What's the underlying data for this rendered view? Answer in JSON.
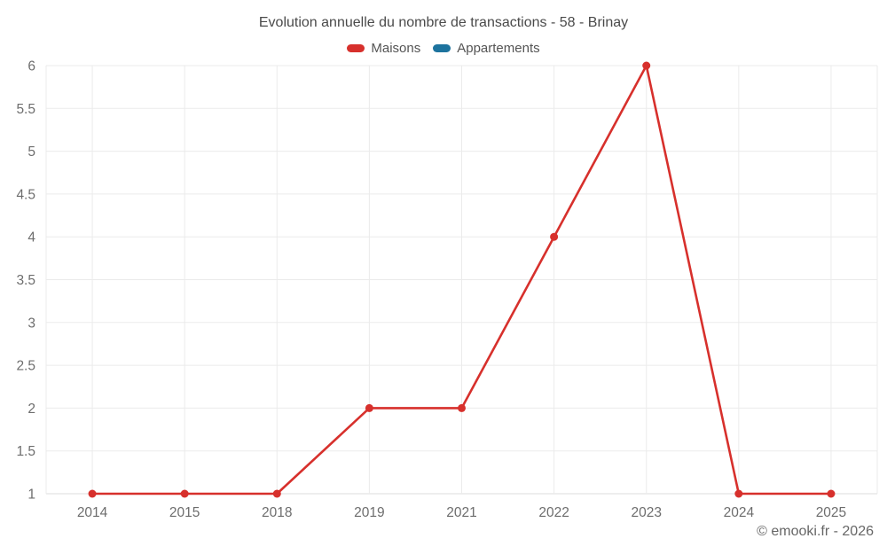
{
  "title": "Evolution annuelle du nombre de transactions - 58 - Brinay",
  "footer": "© emooki.fr - 2026",
  "legend": [
    {
      "label": "Maisons",
      "color": "#d7302c"
    },
    {
      "label": "Appartements",
      "color": "#1d739e"
    }
  ],
  "chart_data": {
    "type": "line",
    "title": "Evolution annuelle du nombre de transactions - 58 - Brinay",
    "categories": [
      "2014",
      "2015",
      "2018",
      "2019",
      "2021",
      "2022",
      "2023",
      "2024",
      "2025"
    ],
    "series": [
      {
        "name": "Maisons",
        "color": "#d7302c",
        "marker": "circle",
        "values": [
          1,
          1,
          1,
          2,
          2,
          4,
          6,
          1,
          1
        ]
      },
      {
        "name": "Appartements",
        "color": "#1d739e",
        "marker": "circle",
        "values": []
      }
    ],
    "xlabel": "",
    "ylabel": "",
    "ylim": [
      1,
      6
    ],
    "ytick_step": 0.5,
    "yticks": [
      1,
      1.5,
      2,
      2.5,
      3,
      3.5,
      4,
      4.5,
      5,
      5.5,
      6
    ],
    "grid": true,
    "legend_position": "top"
  }
}
